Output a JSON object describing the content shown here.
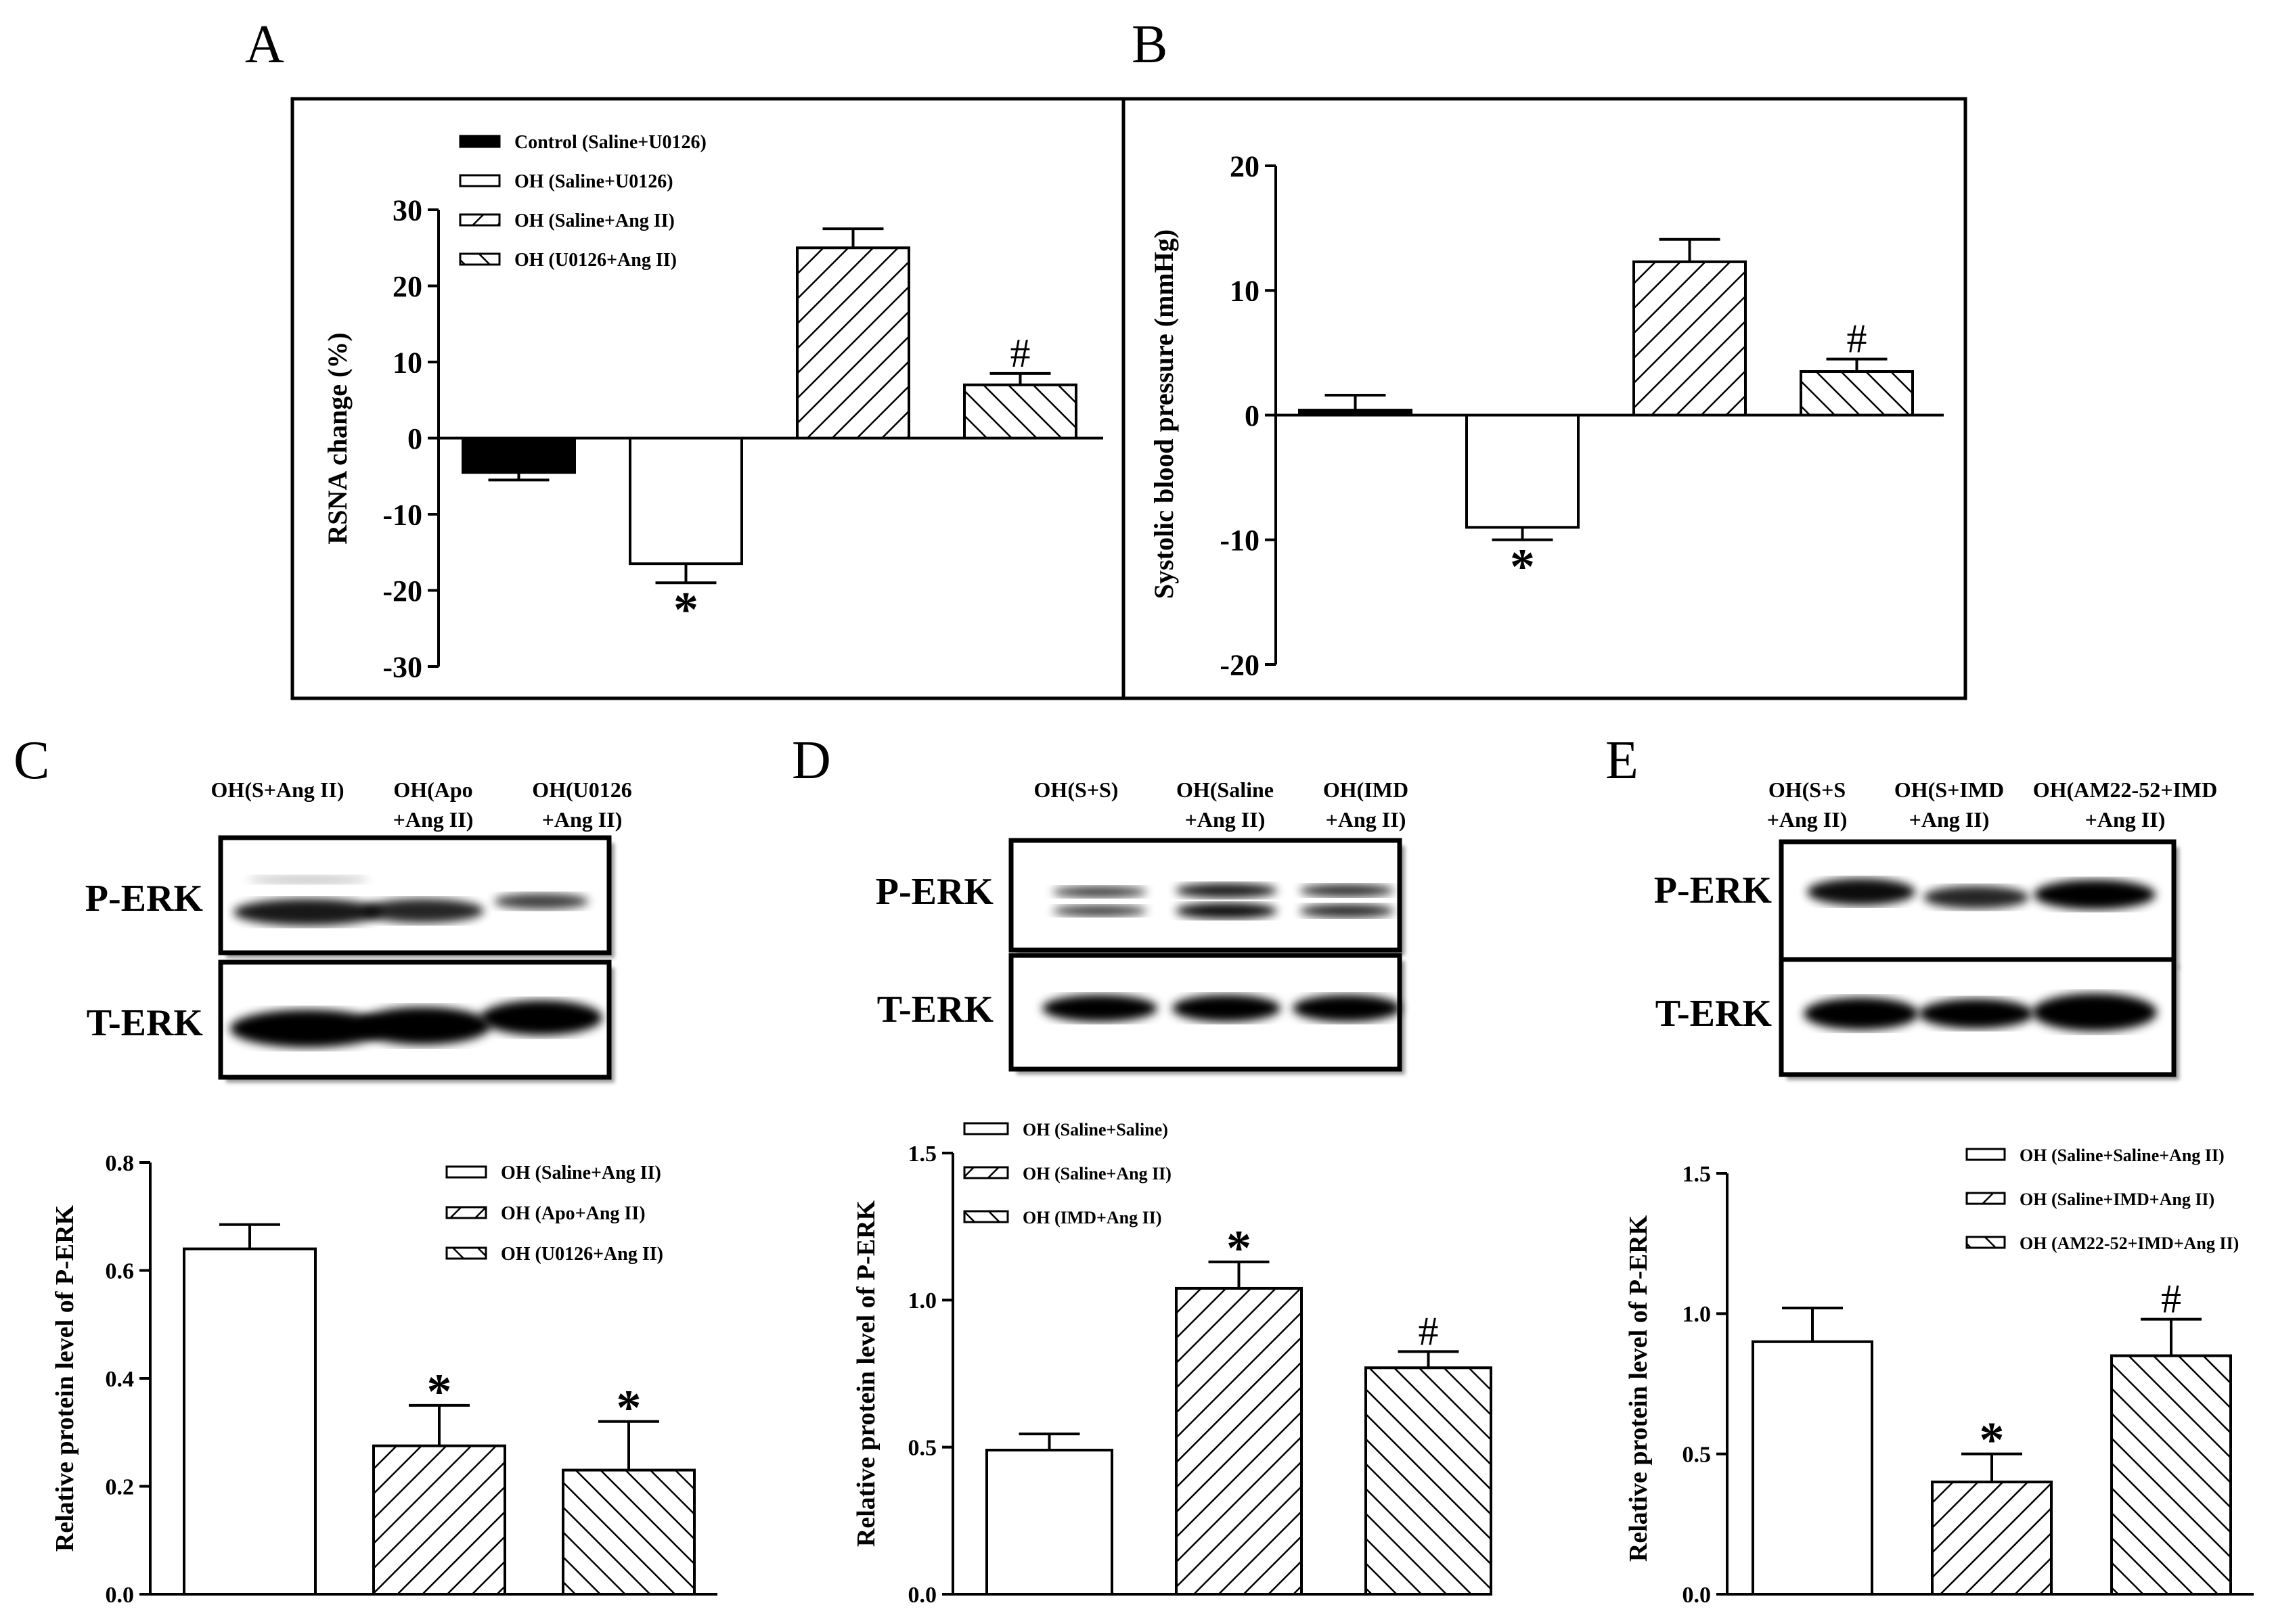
{
  "panels": {
    "A": "A",
    "B": "B",
    "C": "C",
    "D": "D",
    "E": "E"
  },
  "blots": {
    "C": {
      "lanes": [
        [
          "OH(S+Ang II)"
        ],
        [
          "OH(Apo",
          "+Ang II)"
        ],
        [
          "OH(U0126",
          "+Ang II)"
        ]
      ],
      "rows": [
        "P-ERK",
        "T-ERK"
      ]
    },
    "D": {
      "lanes": [
        [
          "OH(S+S)"
        ],
        [
          "OH(Saline",
          "+Ang II)"
        ],
        [
          "OH(IMD",
          "+Ang II)"
        ]
      ],
      "rows": [
        "P-ERK",
        "T-ERK"
      ]
    },
    "E": {
      "lanes": [
        [
          "OH(S+S",
          "+Ang II)"
        ],
        [
          "OH(S+IMD",
          "+Ang II)"
        ],
        [
          "OH(AM22-52+IMD",
          "+Ang II)"
        ]
      ],
      "rows": [
        "P-ERK",
        "T-ERK"
      ]
    }
  },
  "chart_data": [
    {
      "panel": "A",
      "type": "bar",
      "ylabel": "RSNA change (%)",
      "ylim": [
        -30,
        30
      ],
      "yticks": [
        30,
        20,
        10,
        0,
        -10,
        -20,
        -30
      ],
      "legend_position": "top-left",
      "series": [
        {
          "name": "Control (Saline+U0126)",
          "pattern": "solid",
          "value": -4.5,
          "error": 1.0,
          "annotation": ""
        },
        {
          "name": "OH (Saline+U0126)",
          "pattern": "open",
          "value": -16.5,
          "error": 2.5,
          "annotation": "*"
        },
        {
          "name": "OH (Saline+Ang II)",
          "pattern": "hatch-right",
          "value": 25.0,
          "error": 2.5,
          "annotation": ""
        },
        {
          "name": "OH (U0126+Ang II)",
          "pattern": "hatch-left",
          "value": 7.0,
          "error": 1.5,
          "annotation": "#"
        }
      ]
    },
    {
      "panel": "B",
      "type": "bar",
      "ylabel": "Systolic blood pressure  (mmHg)",
      "ylim": [
        -20,
        20
      ],
      "yticks": [
        20,
        10,
        0,
        -10,
        -20
      ],
      "series": [
        {
          "pattern": "solid",
          "value": 0.4,
          "error": 1.2,
          "annotation": ""
        },
        {
          "pattern": "open",
          "value": -9.0,
          "error": 1.0,
          "annotation": "*"
        },
        {
          "pattern": "hatch-right",
          "value": 12.3,
          "error": 1.8,
          "annotation": ""
        },
        {
          "pattern": "hatch-left",
          "value": 3.5,
          "error": 1.0,
          "annotation": "#"
        }
      ]
    },
    {
      "panel": "C",
      "type": "bar",
      "ylabel": "Relative protein level of P-ERK",
      "ylim": [
        0,
        0.8
      ],
      "yticks": [
        "0.8",
        "0.6",
        "0.4",
        "0.2",
        "0.0"
      ],
      "legend_position": "top-right",
      "series": [
        {
          "name": "OH (Saline+Ang II)",
          "pattern": "open",
          "value": 0.64,
          "error": 0.045,
          "annotation": ""
        },
        {
          "name": "OH (Apo+Ang II)",
          "pattern": "hatch-right",
          "value": 0.275,
          "error": 0.075,
          "annotation": "*"
        },
        {
          "name": "OH (U0126+Ang II)",
          "pattern": "hatch-left",
          "value": 0.23,
          "error": 0.09,
          "annotation": "*"
        }
      ]
    },
    {
      "panel": "D",
      "type": "bar",
      "ylabel": "Relative protein level of P-ERK",
      "ylim": [
        0,
        1.5
      ],
      "yticks": [
        "1.5",
        "1.0",
        "0.5",
        "0.0"
      ],
      "legend_position": "top-left",
      "series": [
        {
          "name": "OH (Saline+Saline)",
          "pattern": "open",
          "value": 0.49,
          "error": 0.055,
          "annotation": ""
        },
        {
          "name": "OH (Saline+Ang II)",
          "pattern": "hatch-right",
          "value": 1.04,
          "error": 0.09,
          "annotation": "*"
        },
        {
          "name": "OH (IMD+Ang II)",
          "pattern": "hatch-left",
          "value": 0.77,
          "error": 0.055,
          "annotation": "#"
        }
      ]
    },
    {
      "panel": "E",
      "type": "bar",
      "ylabel": "Relative protein level of P-ERK",
      "ylim": [
        0,
        1.5
      ],
      "yticks": [
        "1.5",
        "1.0",
        "0.5",
        "0.0"
      ],
      "legend_position": "top-right",
      "series": [
        {
          "name": "OH (Saline+Saline+Ang II)",
          "pattern": "open",
          "value": 0.9,
          "error": 0.12,
          "annotation": ""
        },
        {
          "name": "OH (Saline+IMD+Ang II)",
          "pattern": "hatch-right",
          "value": 0.4,
          "error": 0.1,
          "annotation": "*"
        },
        {
          "name": "OH (AM22-52+IMD+Ang II)",
          "pattern": "hatch-left",
          "value": 0.85,
          "error": 0.13,
          "annotation": "#"
        }
      ]
    }
  ]
}
